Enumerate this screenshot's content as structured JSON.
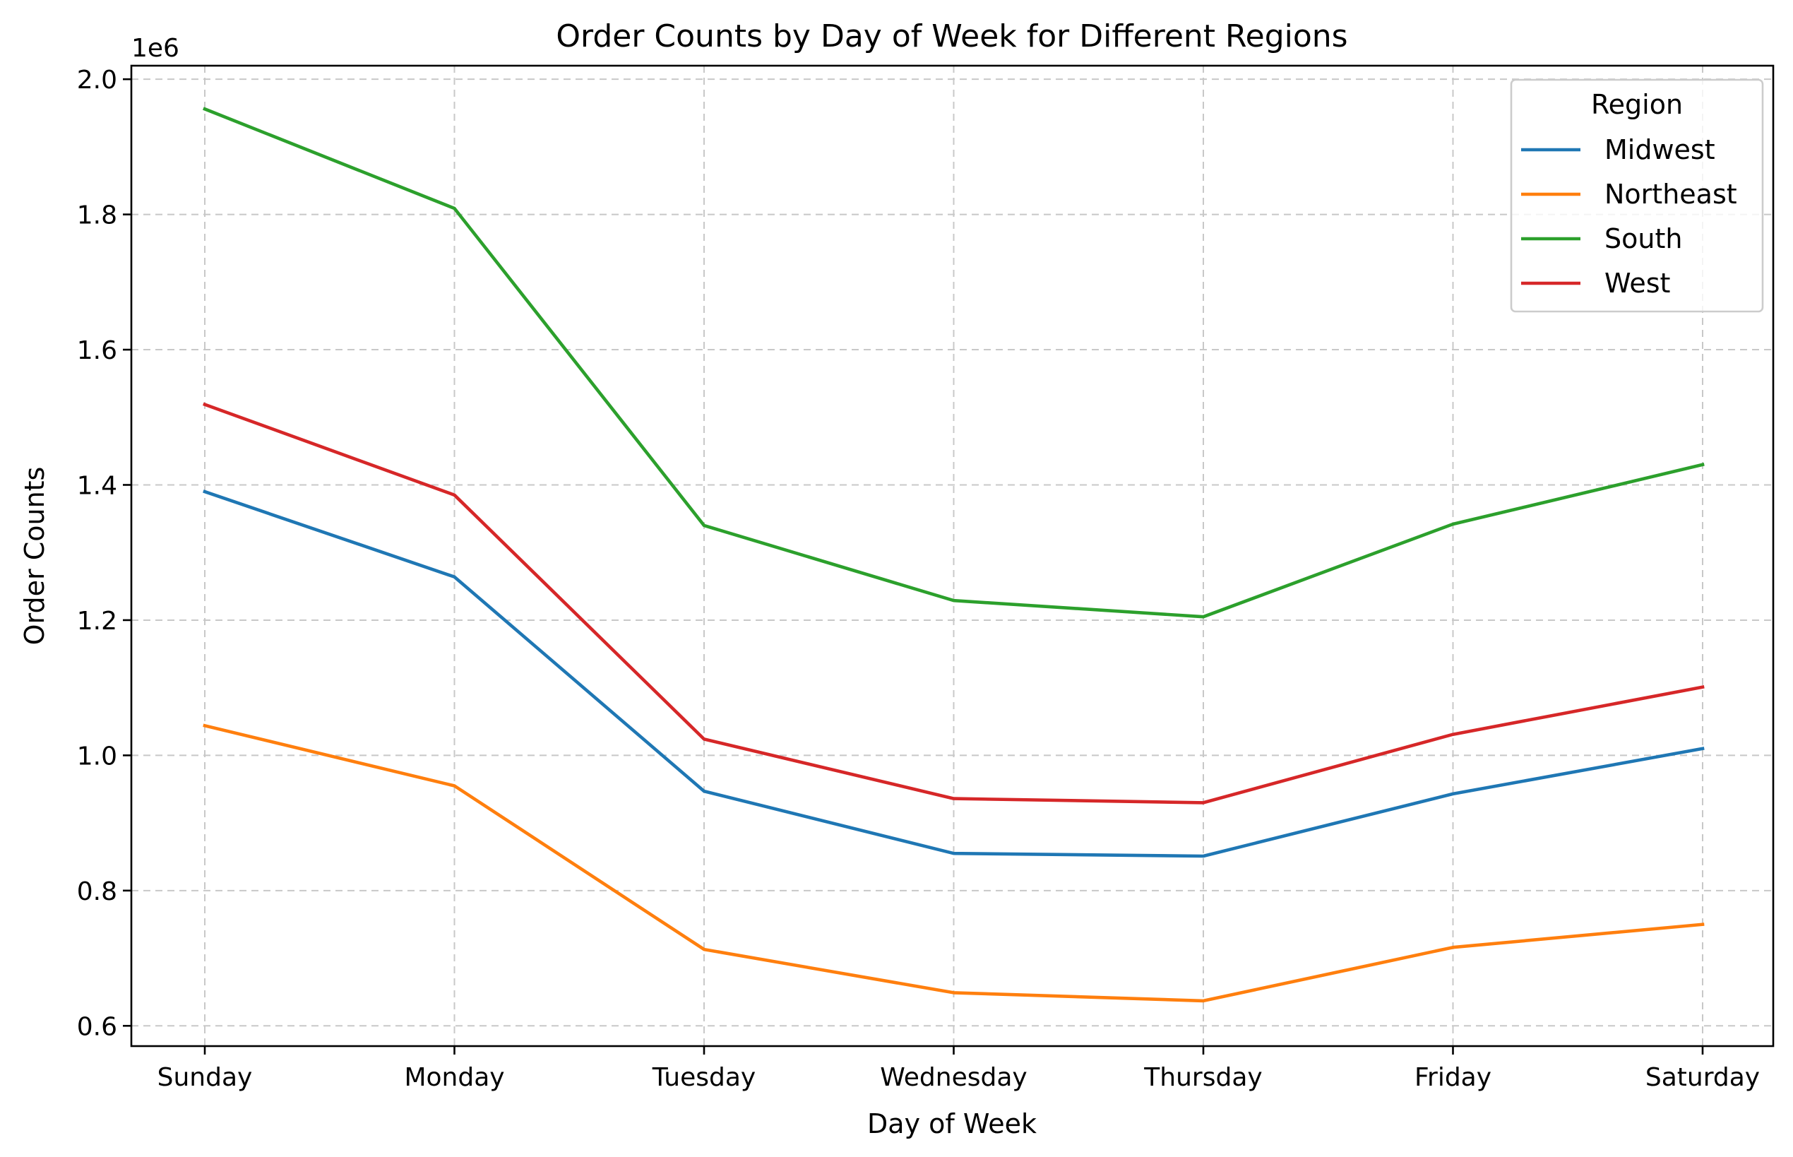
{
  "chart_data": {
    "type": "line",
    "title": "Order Counts by Day of Week for Different Regions",
    "xlabel": "Day of Week",
    "ylabel": "Order Counts",
    "y_offset_label": "1e6",
    "categories": [
      "Sunday",
      "Monday",
      "Tuesday",
      "Wednesday",
      "Thursday",
      "Friday",
      "Saturday"
    ],
    "ylim": [
      570000,
      2020000
    ],
    "yticks": [
      600000,
      800000,
      1000000,
      1200000,
      1400000,
      1600000,
      1800000,
      2000000
    ],
    "ytick_labels": [
      "0.6",
      "0.8",
      "1.0",
      "1.2",
      "1.4",
      "1.6",
      "1.8",
      "2.0"
    ],
    "grid": true,
    "legend": {
      "title": "Region",
      "placement": "top-right"
    },
    "series": [
      {
        "name": "Midwest",
        "color": "#1f77b4",
        "values": [
          1390000,
          1264000,
          947000,
          855000,
          851000,
          943000,
          1010000
        ]
      },
      {
        "name": "Northeast",
        "color": "#ff7f0e",
        "values": [
          1044000,
          955000,
          713000,
          649000,
          637000,
          716000,
          750000
        ]
      },
      {
        "name": "South",
        "color": "#2ca02c",
        "values": [
          1956000,
          1809000,
          1340000,
          1229000,
          1205000,
          1342000,
          1430000
        ]
      },
      {
        "name": "West",
        "color": "#d62728",
        "values": [
          1519000,
          1385000,
          1024000,
          936000,
          930000,
          1031000,
          1101000
        ]
      }
    ]
  }
}
